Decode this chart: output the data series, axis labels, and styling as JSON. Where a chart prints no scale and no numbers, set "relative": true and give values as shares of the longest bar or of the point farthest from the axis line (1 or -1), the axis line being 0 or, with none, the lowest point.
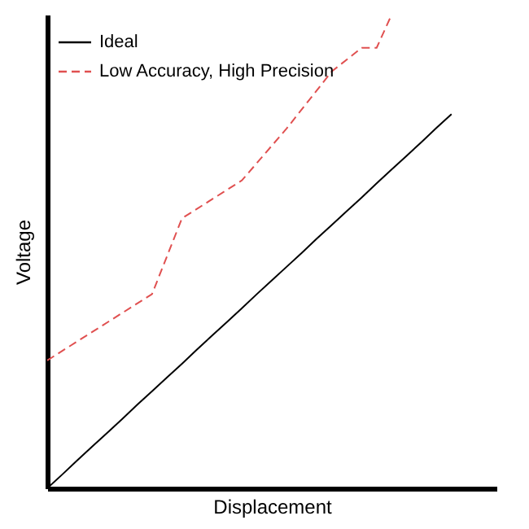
{
  "chart_data": {
    "type": "line",
    "relative": true,
    "xlabel": "Displacement",
    "ylabel": "Voltage",
    "legend": "top left",
    "grid": false,
    "tick_labels": false,
    "marker": "none",
    "categories": [
      null,
      null,
      null,
      null,
      null,
      null,
      null,
      null,
      null,
      null,
      null,
      null,
      null,
      null,
      null,
      null,
      null,
      null,
      null,
      null,
      null,
      null,
      null,
      null,
      null,
      null,
      null,
      null,
      null,
      null,
      null
    ],
    "series": [
      {
        "name": "Ideal",
        "color": "#000000",
        "line_style": "solid",
        "values": [
          0,
          0.029,
          0.059,
          0.088,
          0.117,
          0.146,
          0.176,
          0.205,
          0.234,
          0.263,
          0.293,
          0.322,
          0.351,
          0.38,
          0.41,
          0.439,
          0.468,
          0.497,
          0.527,
          0.556,
          0.585,
          0.614,
          0.644,
          0.673,
          0.702,
          0.731,
          0.761,
          0.79,
          null,
          null,
          null
        ]
      },
      {
        "name": "Low Accuracy, High Precision",
        "color": "#e05050",
        "line_style": "dashed",
        "values": [
          0.27,
          null,
          null,
          null,
          null,
          null,
          null,
          0.41,
          null,
          0.57,
          null,
          null,
          null,
          0.65,
          null,
          null,
          0.76,
          null,
          null,
          0.88,
          null,
          0.93,
          0.93,
          1.0,
          null,
          null,
          null,
          null,
          null,
          null,
          null
        ]
      }
    ]
  }
}
